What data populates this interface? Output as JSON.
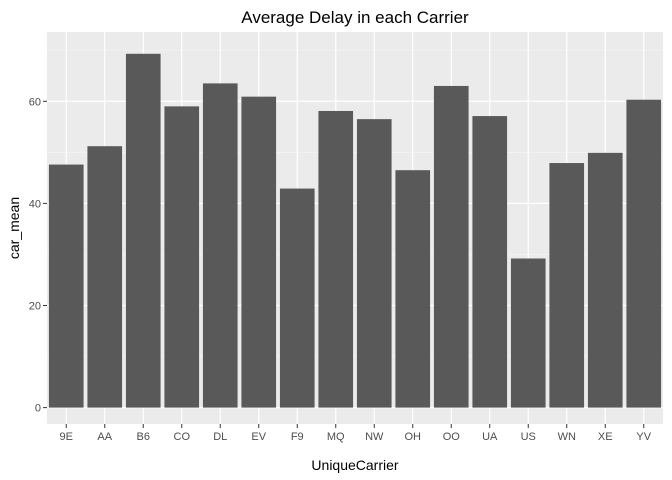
{
  "chart_data": {
    "type": "bar",
    "title": "Average Delay in each Carrier",
    "xlabel": "UniqueCarrier",
    "ylabel": "car_mean",
    "categories": [
      "9E",
      "AA",
      "B6",
      "CO",
      "DL",
      "EV",
      "F9",
      "MQ",
      "NW",
      "OH",
      "OO",
      "UA",
      "US",
      "WN",
      "XE",
      "YV"
    ],
    "values": [
      47.6,
      51.2,
      69.3,
      59.0,
      63.5,
      60.9,
      42.9,
      58.1,
      56.5,
      46.5,
      63.0,
      57.1,
      29.2,
      47.9,
      49.9,
      60.3
    ],
    "ylim": [
      0,
      72
    ],
    "yticks": [
      0,
      20,
      40,
      60
    ],
    "grid": true,
    "legend": "none",
    "colors": {
      "bar": "#595959",
      "panel": "#ebebeb",
      "grid_major": "#ffffff",
      "grid_minor": "#f5f5f5",
      "tick_text": "#4d4d4d"
    }
  }
}
